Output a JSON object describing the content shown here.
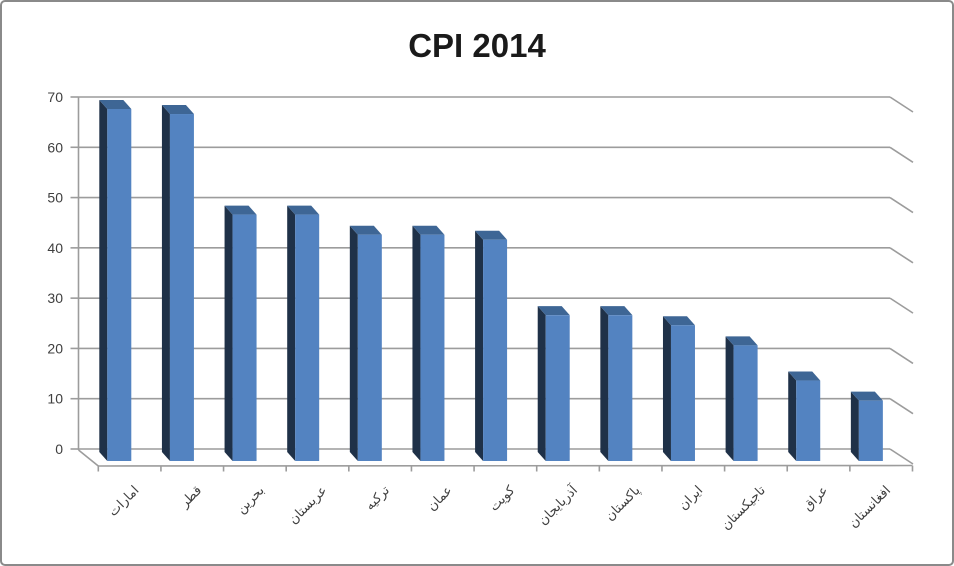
{
  "frame": {
    "kind": "embedded-spreadsheet-chart",
    "background": "#FFFFFF",
    "border_color": "#8A8A8A"
  },
  "chart_data": {
    "type": "bar",
    "style": "3d-clustered-column",
    "title": "CPI 2014",
    "categories": [
      "امارات",
      "قطر",
      "بحرین",
      "عربستان",
      "ترکیه",
      "عمان",
      "کویت",
      "آذربایجان",
      "پاکستان",
      "ایران",
      "تاجیکستان",
      "عراق",
      "افغانستان"
    ],
    "values": [
      70,
      69,
      49,
      49,
      45,
      45,
      44,
      29,
      29,
      27,
      23,
      16,
      12
    ],
    "xlabel": "",
    "ylabel": "",
    "ylim": [
      0,
      70
    ],
    "yticks": [
      0,
      10,
      20,
      30,
      40,
      50,
      60,
      70
    ],
    "grid": true,
    "legend": "none",
    "category_label_rotation_deg": 45,
    "colors": {
      "bar_front": "#5383C1",
      "bar_side": "#1F3148",
      "bar_top": "#3E6695",
      "gridline": "#9C9C9C",
      "axis_line": "#9C9C9C",
      "title_text": "#1A1A1A",
      "tick_label_text": "#3F3F3F"
    }
  }
}
